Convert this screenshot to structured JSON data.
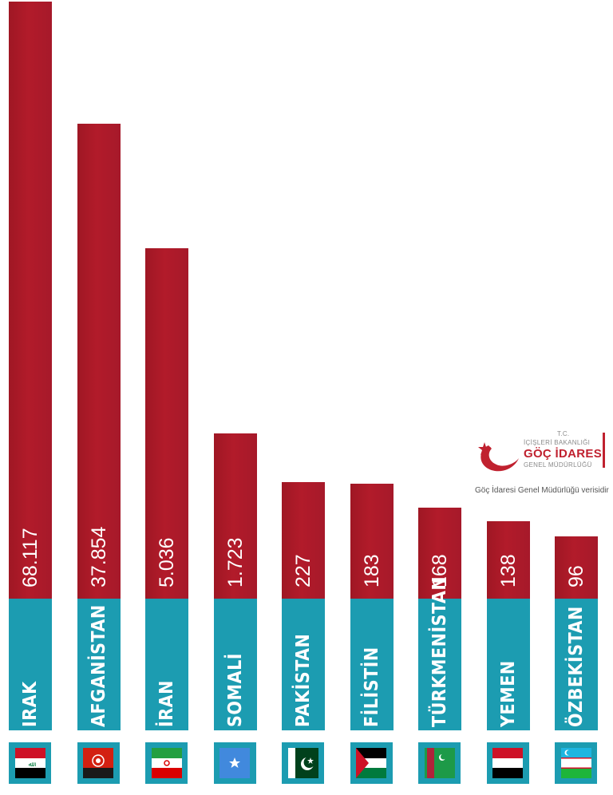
{
  "chart_data": {
    "type": "bar",
    "orientation": "vertical",
    "categories": [
      "IRAK",
      "AFGANİSTAN",
      "İRAN",
      "SOMALİ",
      "PAKİSTAN",
      "FİLİSTİN",
      "TÜRKMENİSTAN",
      "YEMEN",
      "ÖZBEKİSTAN"
    ],
    "value_labels": [
      "68.117",
      "37.854",
      "5.036",
      "1.723",
      "227",
      "183",
      "168",
      "138",
      "96"
    ],
    "values": [
      68117,
      37854,
      5036,
      1723,
      227,
      183,
      168,
      138,
      96
    ],
    "scale": "non-linear (illustrative heights)",
    "grid": false,
    "legend": "none",
    "colors": {
      "value_bar": "#b01b2b",
      "label_bar": "#1c9cb1",
      "flag_box": "#1c9cb1"
    },
    "flags": [
      "iraq-flag-icon",
      "afghanistan-flag-icon",
      "iran-flag-icon",
      "somalia-flag-icon",
      "pakistan-flag-icon",
      "palestine-flag-icon",
      "turkmenistan-flag-icon",
      "yemen-flag-icon",
      "uzbekistan-flag-icon"
    ]
  },
  "logo": {
    "line1": "T.C.",
    "line2": "İÇİŞLERİ BAKANLIĞI",
    "line3": "GÖÇ İDARESİ",
    "line4": "GENEL MÜDÜRLÜĞÜ",
    "icon": "crescent-star-logo-icon",
    "colors": {
      "red": "#c0212f",
      "grey": "#8a8a8a"
    }
  },
  "source_note": "Göç İdaresi Genel Müdürlüğü verisidir"
}
